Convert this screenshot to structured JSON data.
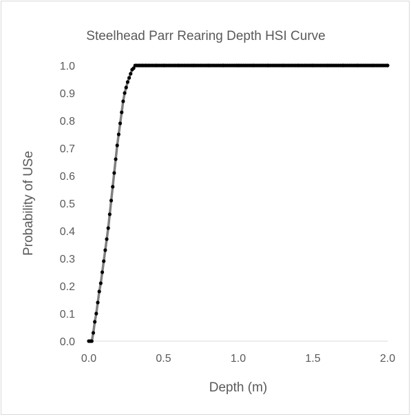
{
  "chart_data": {
    "type": "scatter",
    "title": "Steelhead Parr Rearing Depth HSI Curve",
    "xlabel": "Depth (m)",
    "ylabel": "Probability of USe",
    "xlim": [
      0.0,
      2.0
    ],
    "ylim": [
      0.0,
      1.0
    ],
    "x_ticks": [
      "0.0",
      "0.5",
      "1.0",
      "1.5",
      "2.0"
    ],
    "y_ticks": [
      "0.0",
      "0.1",
      "0.2",
      "0.3",
      "0.4",
      "0.5",
      "0.6",
      "0.7",
      "0.8",
      "0.9",
      "1.0"
    ],
    "grid": false,
    "legend": "none",
    "line_color": "#808080",
    "marker_color": "#000000",
    "series": [
      {
        "x": [
          0.0,
          0.01,
          0.02,
          0.03,
          0.04,
          0.05,
          0.06,
          0.07,
          0.08,
          0.09,
          0.1,
          0.11,
          0.12,
          0.13,
          0.14,
          0.15,
          0.16,
          0.17,
          0.18,
          0.19,
          0.2,
          0.21,
          0.22,
          0.23,
          0.24,
          0.25,
          0.26,
          0.27,
          0.28,
          0.29,
          0.3,
          0.31,
          0.32,
          0.33,
          0.34,
          0.36,
          0.38,
          0.4,
          0.45,
          0.5,
          0.6,
          0.7,
          0.8,
          0.9,
          1.0,
          1.1,
          1.2,
          1.3,
          1.4,
          1.5,
          1.6,
          1.7,
          1.8,
          1.9,
          2.0
        ],
        "y": [
          0.0,
          0.0,
          0.0,
          0.03,
          0.07,
          0.1,
          0.14,
          0.18,
          0.21,
          0.25,
          0.29,
          0.33,
          0.37,
          0.41,
          0.46,
          0.51,
          0.56,
          0.61,
          0.66,
          0.71,
          0.75,
          0.79,
          0.83,
          0.87,
          0.9,
          0.92,
          0.94,
          0.955,
          0.97,
          0.985,
          0.99,
          1.0,
          1.0,
          1.0,
          1.0,
          1.0,
          1.0,
          1.0,
          1.0,
          1.0,
          1.0,
          1.0,
          1.0,
          1.0,
          1.0,
          1.0,
          1.0,
          1.0,
          1.0,
          1.0,
          1.0,
          1.0,
          1.0,
          1.0,
          1.0
        ]
      }
    ]
  }
}
